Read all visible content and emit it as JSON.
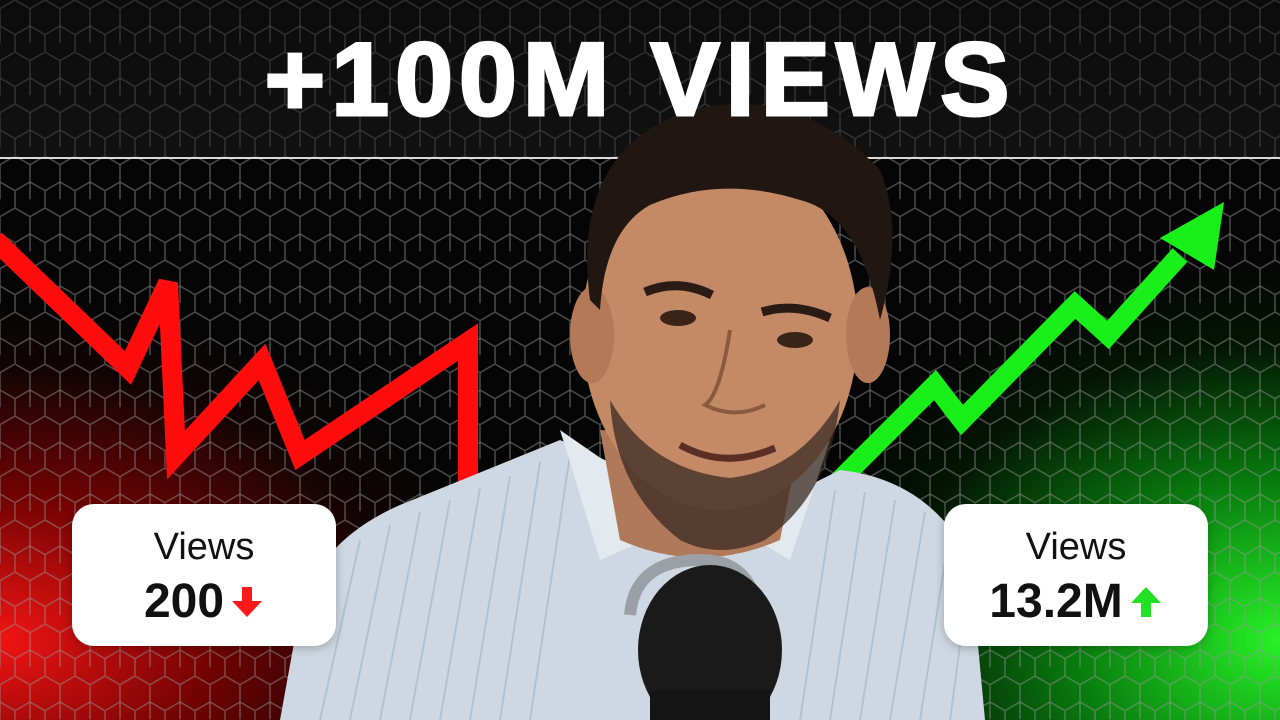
{
  "headline": "+100M VIEWS",
  "left_stat": {
    "label": "Views",
    "value": "200",
    "trend": "down",
    "arrow_icon": "arrow-down-icon",
    "color": "#ff1a1a"
  },
  "right_stat": {
    "label": "Views",
    "value": "13.2M",
    "trend": "up",
    "arrow_icon": "arrow-up-icon",
    "color": "#22e022"
  },
  "colors": {
    "red_line": "#ff0d0d",
    "green_line": "#19f019",
    "background": "#050505"
  }
}
